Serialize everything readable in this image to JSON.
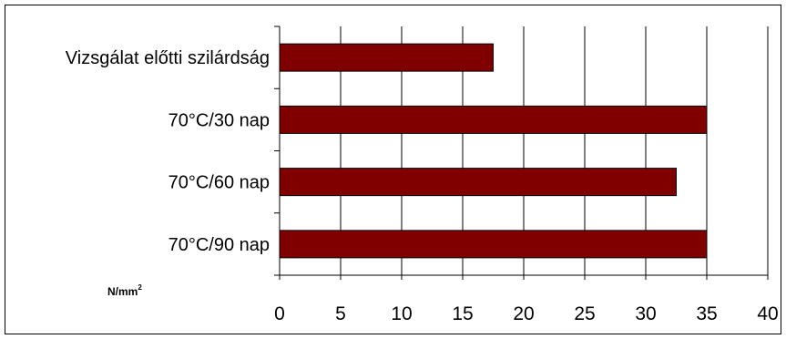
{
  "chart_data": {
    "type": "bar",
    "orientation": "horizontal",
    "categories": [
      "Vizsgálat előtti szilárdság",
      "70°C/30 nap",
      "70°C/60 nap",
      "70°C/90 nap"
    ],
    "values": [
      17.5,
      35,
      32.5,
      35
    ],
    "xlim": [
      0,
      40
    ],
    "xticks": [
      "0",
      "5",
      "10",
      "15",
      "20",
      "25",
      "30",
      "35",
      "40"
    ],
    "unit_label": "N/mm",
    "unit_superscript": "2",
    "grid": "vertical",
    "bar_color": "#800000",
    "legend": "none"
  }
}
